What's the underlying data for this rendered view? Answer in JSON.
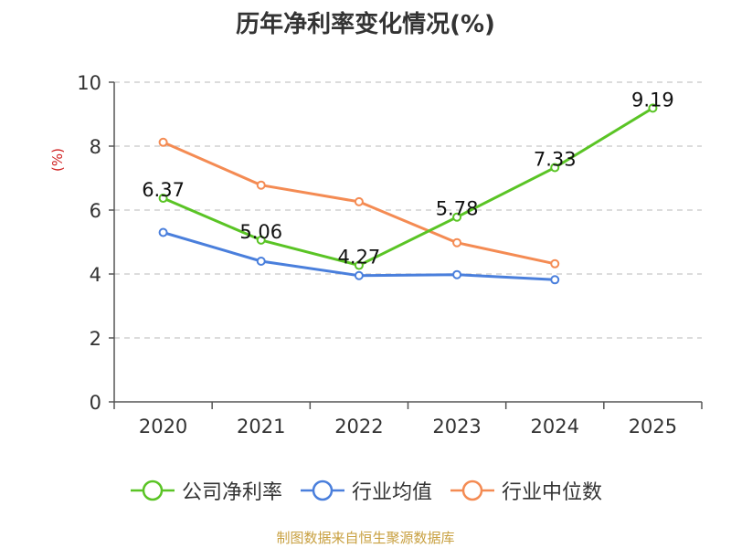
{
  "chart_data": {
    "type": "line",
    "title": "历年净利率变化情况(%)",
    "ylabel": "(%)",
    "xlabel": "",
    "categories": [
      "2020",
      "2021",
      "2022",
      "2023",
      "2024",
      "2025"
    ],
    "ylim": [
      0,
      10
    ],
    "yticks": [
      "0",
      "2",
      "4",
      "6",
      "8",
      "10"
    ],
    "grid": true,
    "legend_position": "bottom",
    "series": [
      {
        "name": "公司净利率",
        "color": "#5ac425",
        "values": [
          6.37,
          5.06,
          4.27,
          5.78,
          7.33,
          9.19
        ],
        "labels": [
          "6.37",
          "5.06",
          "4.27",
          "5.78",
          "7.33",
          "9.19"
        ]
      },
      {
        "name": "行业均值",
        "color": "#4a7fdc",
        "values": [
          5.3,
          4.4,
          3.95,
          3.98,
          3.82,
          null
        ]
      },
      {
        "name": "行业中位数",
        "color": "#f48b53",
        "values": [
          8.12,
          6.78,
          6.26,
          4.98,
          4.32,
          null
        ]
      }
    ]
  },
  "source": "制图数据来自恒生聚源数据库"
}
